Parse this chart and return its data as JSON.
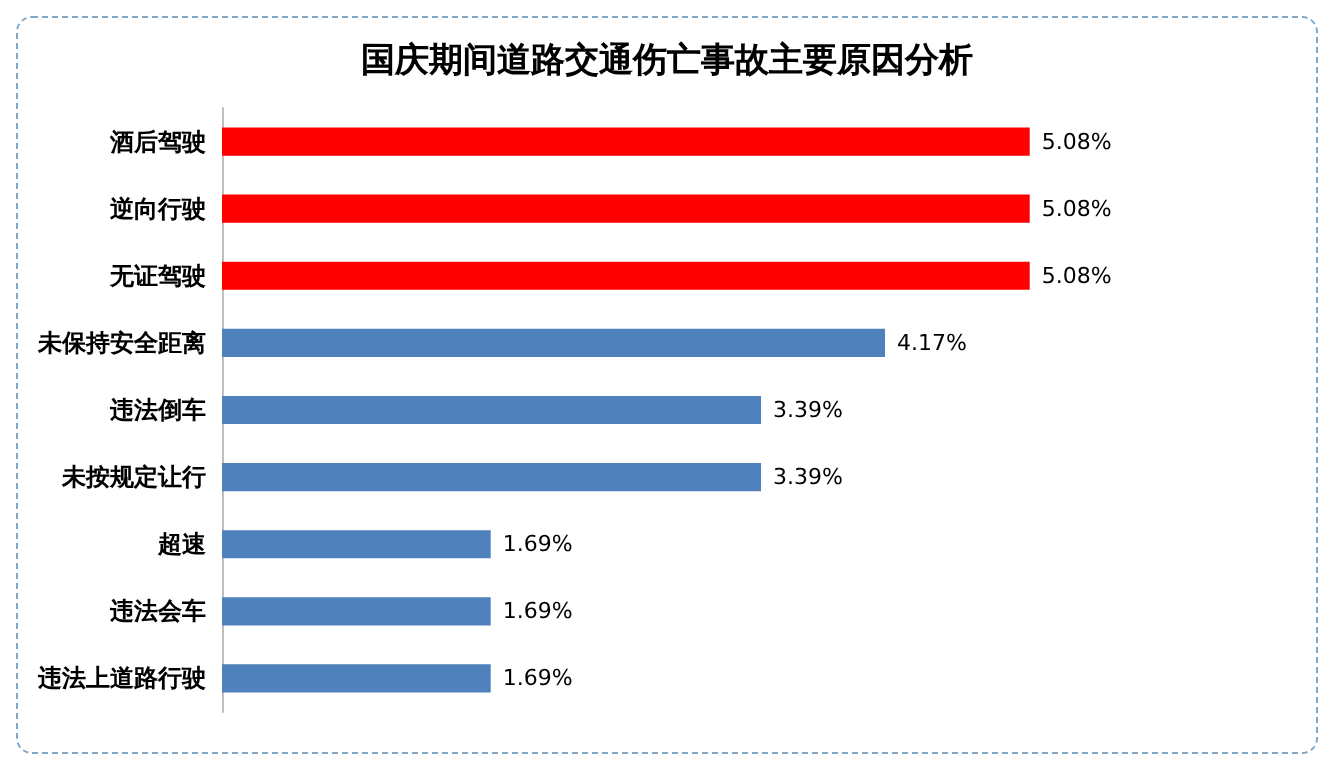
{
  "chart_data": {
    "type": "bar",
    "orientation": "horizontal",
    "title": "国庆期间道路交通伤亡事故主要原因分析",
    "categories": [
      "酒后驾驶",
      "逆向行驶",
      "无证驾驶",
      "未保持安全距离",
      "违法倒车",
      "未按规定让行",
      "超速",
      "违法会车",
      "违法上道路行驶"
    ],
    "values": [
      5.08,
      5.08,
      5.08,
      4.17,
      3.39,
      3.39,
      1.69,
      1.69,
      1.69
    ],
    "colors": [
      "#ff0000",
      "#ff0000",
      "#ff0000",
      "#4f81bd",
      "#4f81bd",
      "#4f81bd",
      "#4f81bd",
      "#4f81bd",
      "#4f81bd"
    ],
    "value_labels": [
      "5.08%",
      "5.08%",
      "5.08%",
      "4.17%",
      "3.39%",
      "3.39%",
      "1.69%",
      "1.69%",
      "1.69%"
    ]
  }
}
